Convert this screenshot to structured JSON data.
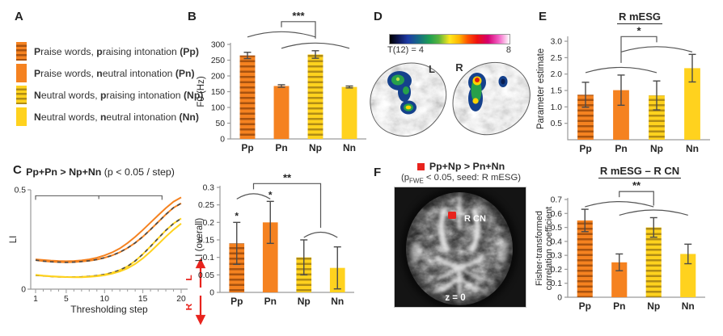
{
  "colors": {
    "orange": "#F58220",
    "orange_stripe": "#A8520F",
    "yellow": "#FFD21E",
    "yellow_stripe": "#B08C15",
    "accent_red": "#E8231D",
    "axis": "#9a9a9a",
    "ink": "#262626",
    "err": "#4a4a4a",
    "sig": "#555555"
  },
  "panels": {
    "A": {
      "label": "A",
      "legend": [
        {
          "swatch": "orange-hatch",
          "segments": [
            "P",
            "raise words, ",
            "p",
            "raising intonation ",
            "(Pp)"
          ]
        },
        {
          "swatch": "orange",
          "segments": [
            "P",
            "raise words,  ",
            "n",
            "eutral intonation ",
            "(Pn)"
          ]
        },
        {
          "swatch": "yellow-hatch",
          "segments": [
            "N",
            "eutral words, ",
            "p",
            "raising intonation ",
            "(Np)"
          ]
        },
        {
          "swatch": "yellow",
          "segments": [
            "N",
            "eutral words, ",
            "n",
            "eutral intonation ",
            "(Nn)"
          ]
        }
      ]
    },
    "B": {
      "label": "B"
    },
    "C": {
      "label": "C",
      "title_bold": "Pp+Pn > Np+Nn",
      "title_rest": " (p < 0.05 / step)",
      "lat_up": "L",
      "lat_down": "R"
    },
    "D": {
      "label": "D",
      "colorbar_min": "T(12) = 4",
      "colorbar_max": "8",
      "left_hemi": "L",
      "right_hemi": "R"
    },
    "E": {
      "label": "E",
      "title": "R mESG"
    },
    "F": {
      "label": "F",
      "contrast": "Pp+Np > Pn+Nn",
      "sub_pre": "(p",
      "sub_sub": "FWE",
      "sub_post": " < 0.05, seed: R mESG)",
      "blob_label": "R CN",
      "slice_label": "z = 0"
    },
    "F2": {
      "title": "R mESG – R CN"
    }
  },
  "chart_data": {
    "f0": {
      "type": "bar",
      "ylabel": "F0 (Hz)",
      "categories": [
        "Pp",
        "Pn",
        "Np",
        "Nn"
      ],
      "values": [
        265,
        168,
        268,
        165
      ],
      "errors": [
        10,
        4,
        12,
        3
      ],
      "fills": [
        "orange-hatch",
        "orange",
        "yellow-hatch",
        "yellow"
      ],
      "ylim": [
        0,
        300
      ],
      "yticks": [
        0,
        50,
        100,
        150,
        200,
        250,
        300
      ],
      "ytick_labels": [
        "0",
        "50",
        "100",
        "150",
        "200",
        "250",
        "300"
      ],
      "sig": {
        "pairing": "13-24",
        "stars": "***"
      }
    },
    "li_curves": {
      "type": "line",
      "xlabel": "Thresholding step",
      "ylabel": "LI",
      "xlim": [
        1,
        20
      ],
      "ylim": [
        0,
        0.5
      ],
      "xticks": [
        1,
        5,
        10,
        15,
        20
      ],
      "yticks": [
        0,
        0.5
      ],
      "ytick_labels": [
        "0",
        "0.5"
      ],
      "sig_span": {
        "x_from": 1,
        "x_to": 17.5,
        "y": 0.47,
        "meaning": "Pp+Pn > Np+Nn (p < 0.05 / step)"
      },
      "series": [
        {
          "name": "Pn",
          "color": "orange",
          "dashed": false,
          "values": [
            0.15,
            0.147,
            0.144,
            0.142,
            0.141,
            0.142,
            0.145,
            0.15,
            0.158,
            0.17,
            0.185,
            0.205,
            0.232,
            0.263,
            0.298,
            0.335,
            0.372,
            0.408,
            0.44,
            0.462
          ]
        },
        {
          "name": "Pp",
          "color": "orange",
          "dashed": true,
          "values": [
            0.146,
            0.141,
            0.138,
            0.136,
            0.135,
            0.136,
            0.139,
            0.143,
            0.149,
            0.158,
            0.17,
            0.186,
            0.207,
            0.233,
            0.264,
            0.3,
            0.338,
            0.376,
            0.41,
            0.432
          ]
        },
        {
          "name": "Np",
          "color": "yellow",
          "dashed": true,
          "values": [
            0.07,
            0.067,
            0.064,
            0.062,
            0.061,
            0.061,
            0.062,
            0.064,
            0.068,
            0.074,
            0.083,
            0.096,
            0.115,
            0.142,
            0.176,
            0.215,
            0.256,
            0.296,
            0.33,
            0.356
          ]
        },
        {
          "name": "Nn",
          "color": "yellow",
          "dashed": false,
          "values": [
            0.072,
            0.068,
            0.065,
            0.063,
            0.061,
            0.06,
            0.06,
            0.062,
            0.065,
            0.07,
            0.078,
            0.089,
            0.105,
            0.127,
            0.155,
            0.189,
            0.226,
            0.264,
            0.299,
            0.33
          ]
        }
      ]
    },
    "li_overall": {
      "type": "bar",
      "ylabel": "LI (overall)",
      "categories": [
        "Pp",
        "Pn",
        "Np",
        "Nn"
      ],
      "values": [
        0.14,
        0.2,
        0.1,
        0.07
      ],
      "errors": [
        0.06,
        0.06,
        0.05,
        0.06
      ],
      "fills": [
        "orange-hatch",
        "orange",
        "yellow-hatch",
        "yellow"
      ],
      "ylim": [
        0,
        0.3
      ],
      "yticks": [
        0,
        0.05,
        0.1,
        0.15,
        0.2,
        0.25,
        0.3
      ],
      "ytick_labels": [
        "0",
        "0.05",
        "0.1",
        "0.15",
        "0.2",
        "0.25",
        "0.3"
      ],
      "bar_stars": [
        "*",
        "*",
        "",
        ""
      ],
      "sig": {
        "pairing": "12-34",
        "stars": "**"
      }
    },
    "param_est": {
      "type": "bar",
      "title": "R mESG",
      "ylabel": "Parameter estimate",
      "categories": [
        "Pp",
        "Pn",
        "Np",
        "Nn"
      ],
      "values": [
        1.37,
        1.51,
        1.35,
        2.18
      ],
      "errors": [
        0.38,
        0.46,
        0.44,
        0.42
      ],
      "fills": [
        "orange-hatch",
        "orange",
        "yellow-hatch",
        "yellow"
      ],
      "ylim": [
        0,
        3.1
      ],
      "yticks": [
        0.5,
        1.0,
        1.5,
        2.0,
        2.5,
        3.0
      ],
      "ytick_labels": [
        "0.5",
        "1.0",
        "1.5",
        "2.0",
        "2.5",
        "3.0"
      ],
      "sig": {
        "pairing": "13-24",
        "stars": "*"
      }
    },
    "fisher": {
      "type": "bar",
      "title": "R mESG – R CN",
      "ylabel_lines": [
        "Fisher-transformed",
        "correlation coefficient"
      ],
      "categories": [
        "Pp",
        "Pn",
        "Np",
        "Nn"
      ],
      "values": [
        0.55,
        0.25,
        0.5,
        0.31
      ],
      "errors": [
        0.08,
        0.06,
        0.07,
        0.07
      ],
      "fills": [
        "orange-hatch",
        "orange",
        "yellow-hatch",
        "yellow"
      ],
      "ylim": [
        0,
        0.7
      ],
      "yticks": [
        0,
        0.1,
        0.2,
        0.3,
        0.4,
        0.5,
        0.6,
        0.7
      ],
      "ytick_labels": [
        "0",
        "0.1",
        "0.2",
        "0.3",
        "0.4",
        "0.5",
        "0.6",
        "0.7"
      ],
      "sig": {
        "pairing": "13-24",
        "stars": "**"
      }
    }
  }
}
